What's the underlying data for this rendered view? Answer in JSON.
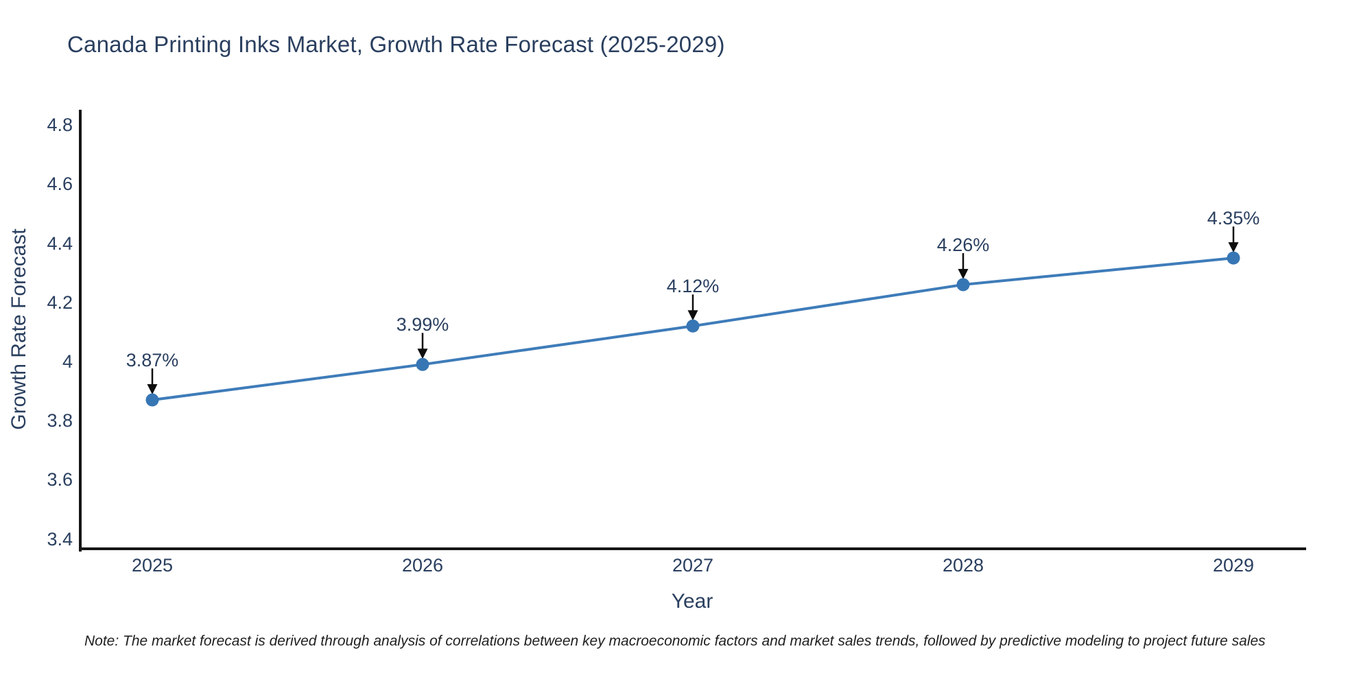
{
  "title": "Canada Printing Inks Market, Growth Rate Forecast (2025-2029)",
  "note": "Note: The market forecast is derived through analysis of correlations between key macroeconomic factors and market sales trends, followed by predictive modeling to project future sales",
  "text_color": "#2a3f5f",
  "chart_data": {
    "type": "line",
    "title": "Canada Printing Inks Market, Growth Rate Forecast (2025-2029)",
    "x": [
      "2025",
      "2026",
      "2027",
      "2028",
      "2029"
    ],
    "values": [
      3.87,
      3.99,
      4.12,
      4.26,
      4.35
    ],
    "point_labels": [
      "3.87%",
      "3.99%",
      "4.12%",
      "4.26%",
      "4.35%"
    ],
    "xlabel": "Year",
    "ylabel": "Growth Rate Forecast",
    "y_ticks": [
      "4.8",
      "4.6",
      "4.4",
      "4.2",
      "4",
      "3.8",
      "3.6",
      "3.4"
    ],
    "y_tick_values": [
      4.8,
      4.6,
      4.4,
      4.2,
      4.0,
      3.8,
      3.6,
      3.4
    ],
    "ylim": [
      3.36,
      4.85
    ],
    "grid": false,
    "legend": "none",
    "line_color": "#3e7cb9",
    "marker_color": "#3776b4",
    "axis_color": "#161616",
    "arrow_color": "#0d0d0d"
  }
}
